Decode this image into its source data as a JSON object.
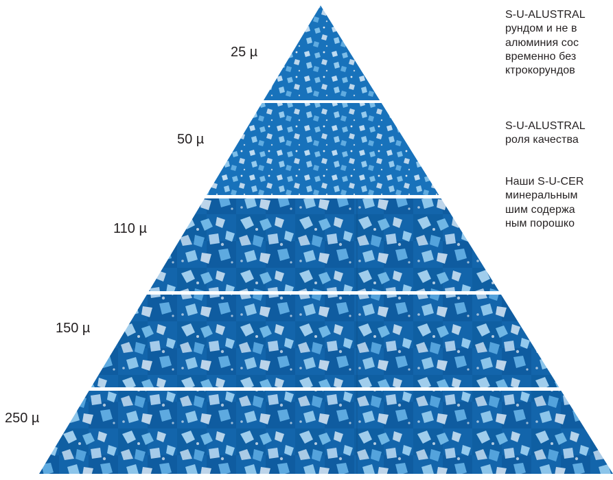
{
  "size_labels": [
    "25 µ",
    "50 µ",
    "110 µ",
    "150 µ",
    "250 µ"
  ],
  "paragraphs": [
    {
      "lines": [
        "S-U-ALUSTRAL",
        "рундом и не в",
        "алюминия сос",
        "временно без",
        "ктрокорундов"
      ]
    },
    {
      "lines": [
        "S-U-ALUSTRAL",
        "роля качества"
      ]
    },
    {
      "lines": [
        "Наши S-U-CER",
        "минеральным",
        "шим содержа",
        "ным порошко"
      ]
    }
  ],
  "colors": {
    "crystal_dark": "#0b5a9c",
    "crystal_mid": "#1e88d0",
    "crystal_light": "#bfe6ff",
    "text": "#231f20"
  }
}
